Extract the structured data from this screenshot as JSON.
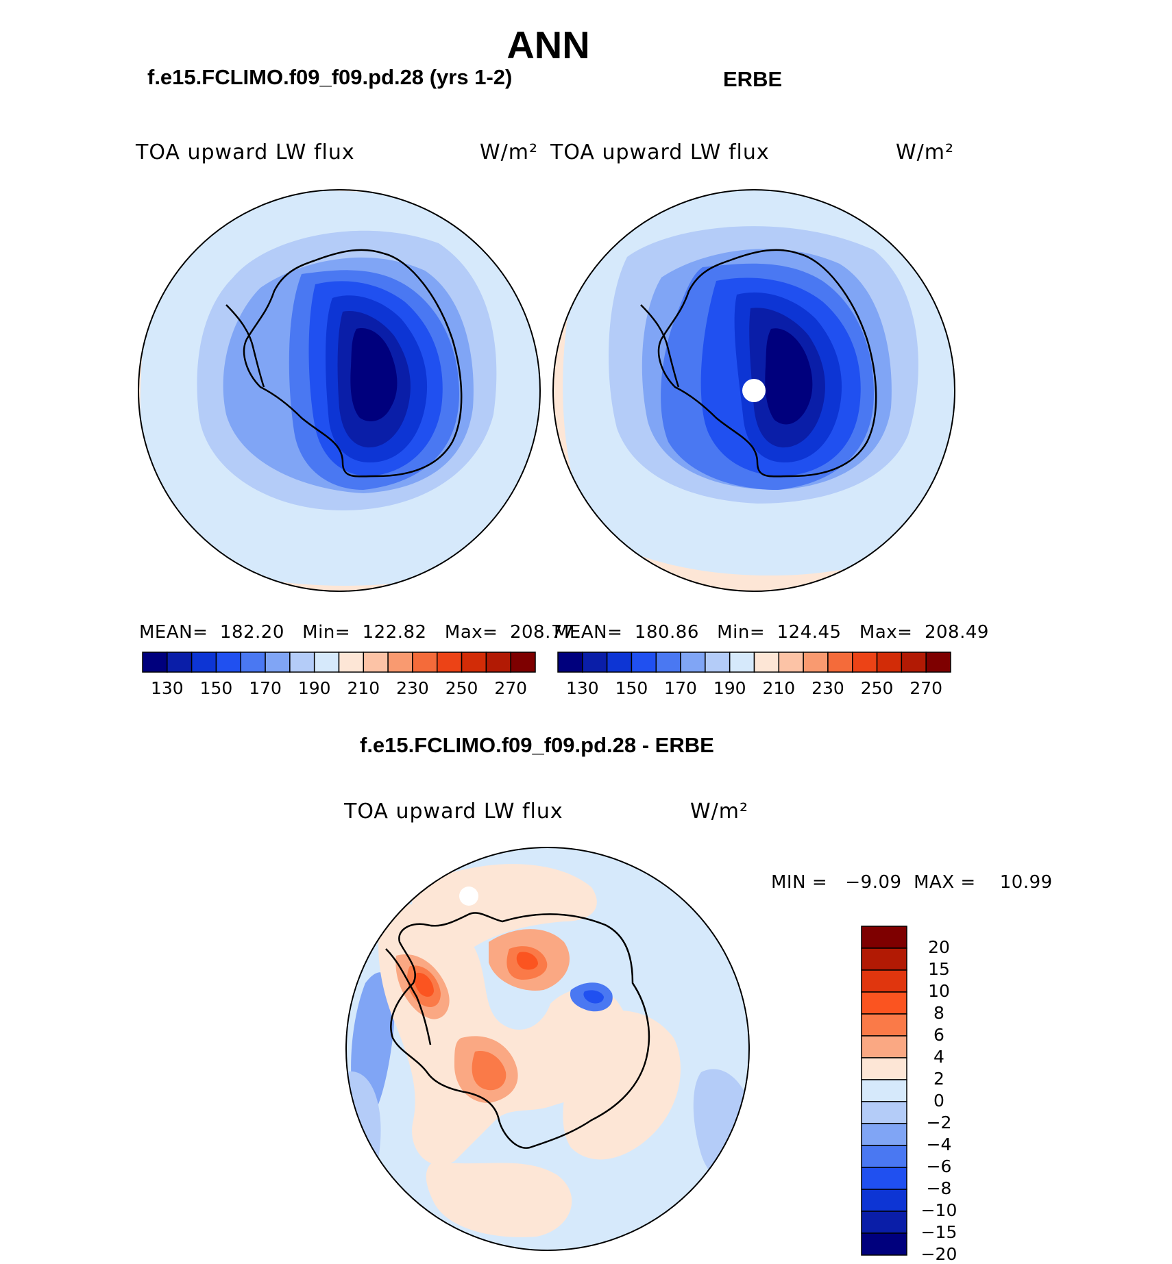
{
  "title": "ANN",
  "panels": [
    {
      "name": "model",
      "heading": "f.e15.FCLIMO.f09_f09.pd.28 (yrs 1-2)",
      "variable": "TOA upward LW flux",
      "units": "W/m²",
      "stats_text": "MEAN=  182.20   Min=  122.82   Max=  208.77",
      "stats": {
        "mean": 182.2,
        "min": 122.82,
        "max": 208.77
      },
      "colorbar": {
        "ticks": [
          "130",
          "150",
          "170",
          "190",
          "210",
          "230",
          "250",
          "270"
        ]
      }
    },
    {
      "name": "obs",
      "heading": "ERBE",
      "variable": "TOA upward LW flux",
      "units": "W/m²",
      "stats_text": "MEAN=  180.86   Min=  124.45   Max=  208.49",
      "stats": {
        "mean": 180.86,
        "min": 124.45,
        "max": 208.49
      },
      "colorbar": {
        "ticks": [
          "130",
          "150",
          "170",
          "190",
          "210",
          "230",
          "250",
          "270"
        ]
      }
    },
    {
      "name": "difference",
      "heading": "f.e15.FCLIMO.f09_f09.pd.28 - ERBE",
      "variable": "TOA upward LW flux",
      "units": "W/m²",
      "stats_text": "MIN =   −9.09  MAX =    10.99",
      "stats": {
        "min": -9.09,
        "max": 10.99
      },
      "colorbar": {
        "ticks": [
          "20",
          "15",
          "10",
          "8",
          "6",
          "4",
          "2",
          "0",
          "−2",
          "−4",
          "−6",
          "−8",
          "−10",
          "−15",
          "−20"
        ]
      }
    }
  ],
  "colors": {
    "abs_scale": [
      "#00007d",
      "#0a1ea8",
      "#0d35d4",
      "#2050f0",
      "#4a78f2",
      "#80a5f5",
      "#b4ccf8",
      "#d6e9fb",
      "#fde6d6",
      "#fcc3a6",
      "#f99a70",
      "#f46b3a",
      "#ec4316",
      "#d22c07",
      "#b21a04",
      "#7e0000"
    ],
    "diff_scale": [
      "#7e0000",
      "#b21a04",
      "#e0360e",
      "#fb5420",
      "#fa7a48",
      "#faa883",
      "#fde6d6",
      "#d6e9fb",
      "#b4ccf8",
      "#80a5f5",
      "#4a78f2",
      "#2050f0",
      "#0d35d4",
      "#0a1ea8",
      "#00007d"
    ]
  }
}
